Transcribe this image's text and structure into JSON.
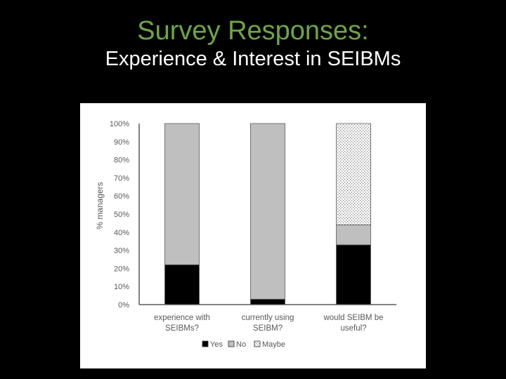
{
  "slide": {
    "title": "Survey Responses:",
    "subtitle": "Experience & Interest in SEIBMs"
  },
  "chart_data": {
    "type": "bar",
    "stacked": true,
    "percent": true,
    "categories": [
      [
        "experience with",
        "SEIBMs?"
      ],
      [
        "currently using",
        "SEIBM?"
      ],
      [
        "would SEIBM be",
        "useful?"
      ]
    ],
    "series": [
      {
        "name": "Yes",
        "values": [
          22,
          3,
          33
        ],
        "color": "#000000",
        "pattern": "solid"
      },
      {
        "name": "No",
        "values": [
          78,
          97,
          11
        ],
        "color": "#bfbfbf",
        "pattern": "solid"
      },
      {
        "name": "Maybe",
        "values": [
          0,
          0,
          56
        ],
        "color": "#ffffff",
        "pattern": "dotted"
      }
    ],
    "ylabel": "% managers",
    "ylim": [
      0,
      100
    ],
    "yticks": [
      "0%",
      "10%",
      "20%",
      "30%",
      "40%",
      "50%",
      "60%",
      "70%",
      "80%",
      "90%",
      "100%"
    ],
    "legend_position": "bottom",
    "grid": false
  }
}
